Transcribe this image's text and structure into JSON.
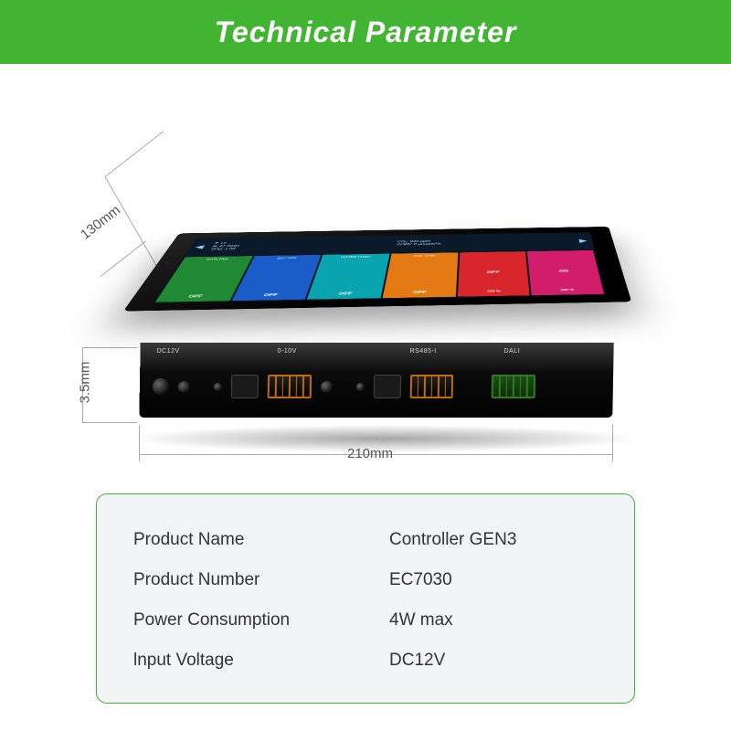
{
  "header": {
    "title": "Technical Parameter",
    "band_color": "#41b431",
    "title_color": "#ffffff",
    "title_fontsize": 32
  },
  "dimensions": {
    "depth": "130mm",
    "height": "3.5mm",
    "width": "210mm",
    "line_color": "#aaaaaa",
    "label_color": "#555555",
    "label_fontsize": 15
  },
  "device": {
    "body_color": "#000000",
    "screen": {
      "background": "#07121d",
      "status_bg": "#0a1a2a",
      "status_text_color": "#cfeaff",
      "status": {
        "line1_left": "T: 17",
        "line2_left": "H: 42  %RH",
        "line3_left": "VPD: 1.08",
        "line1_right": "CO₂: 920 ppm",
        "line2_right": "PPFD: 0 µmol/m²/s",
        "corner": "101-D-T1"
      },
      "cells": [
        {
          "label": "MAIN FAN",
          "state": "OFF",
          "num": "",
          "color": "#1f8a33",
          "class": "c-green"
        },
        {
          "label": "SUP FAN",
          "state": "OFF",
          "num": "",
          "color": "#1a5cc8",
          "class": "c-blue"
        },
        {
          "label": "WATER PUMP",
          "state": "OFF",
          "num": "",
          "color": "#0aa3b0",
          "class": "c-teal"
        },
        {
          "label": "CO2 TANK",
          "state": "OFF",
          "num": "",
          "color": "#e37a14",
          "class": "c-orange"
        },
        {
          "label": "",
          "state": "OFF",
          "num": "100 %",
          "color": "#d8262c",
          "class": "c-red"
        },
        {
          "label": "",
          "state": "ON",
          "num": "100 %",
          "color": "#d21e6a",
          "class": "c-pink"
        }
      ]
    },
    "front_ports": {
      "labels": {
        "dc": "DC12V",
        "v010": "0-10V",
        "rs485": "RS485-I",
        "dali": "DALI"
      }
    }
  },
  "spec_table": {
    "border_color": "#41b431",
    "background": "#f2f4f6",
    "text_color": "#333333",
    "fontsize": 19,
    "rows": [
      {
        "label": "Product Name",
        "value": "Controller GEN3"
      },
      {
        "label": "Product Number",
        "value": "EC7030"
      },
      {
        "label": "Power Consumption",
        "value": "4W max"
      },
      {
        "label": "lnput Voltage",
        "value": "DC12V"
      }
    ]
  }
}
